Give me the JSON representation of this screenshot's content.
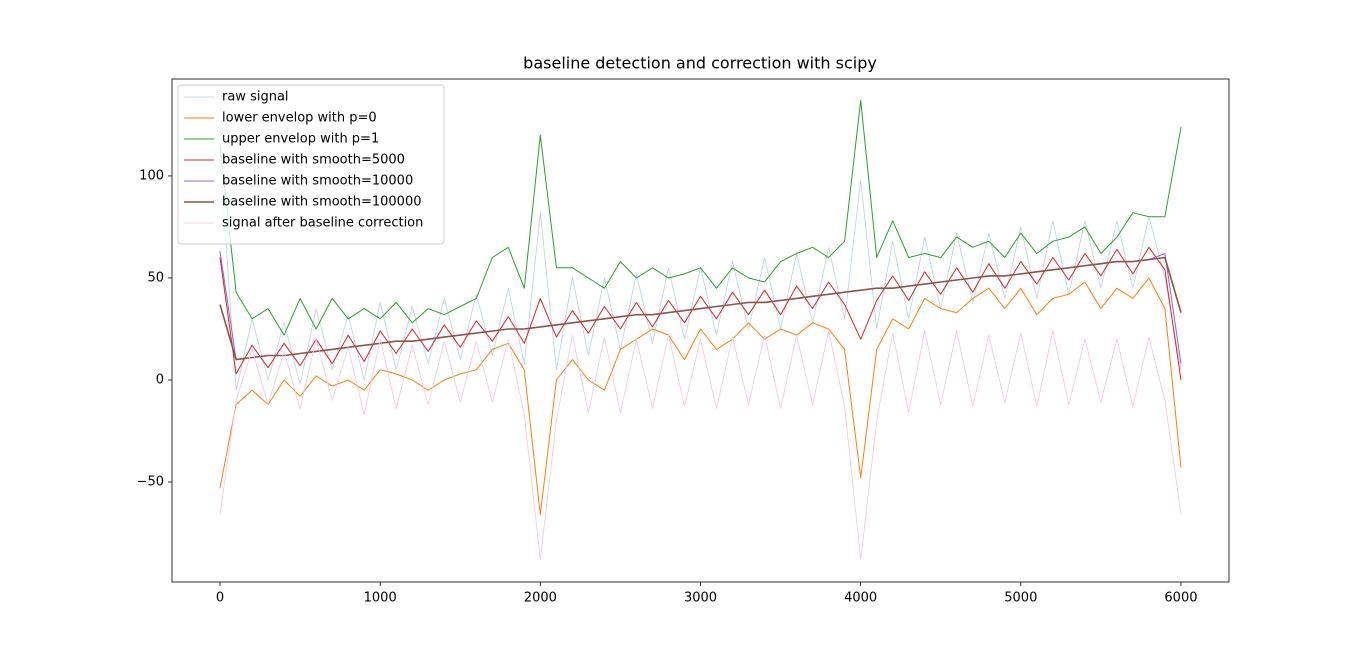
{
  "chart_data": {
    "type": "line",
    "title": "baseline detection and correction with scipy",
    "x": [
      0,
      100,
      200,
      300,
      400,
      500,
      600,
      700,
      800,
      900,
      1000,
      1100,
      1200,
      1300,
      1400,
      1500,
      1600,
      1700,
      1800,
      1900,
      2000,
      2100,
      2200,
      2300,
      2400,
      2500,
      2600,
      2700,
      2800,
      2900,
      3000,
      3100,
      3200,
      3300,
      3400,
      3500,
      3600,
      3700,
      3800,
      3900,
      4000,
      4100,
      4200,
      4300,
      4400,
      4500,
      4600,
      4700,
      4800,
      4900,
      5000,
      5100,
      5200,
      5300,
      5400,
      5500,
      5600,
      5700,
      5800,
      5900,
      6000
    ],
    "xlim": [
      -300,
      6300
    ],
    "xticks": [
      0,
      1000,
      2000,
      3000,
      4000,
      5000,
      6000
    ],
    "ylim": [
      -99,
      147.5
    ],
    "yticks": [
      {
        "value": -50,
        "label": "−50"
      },
      0,
      50,
      100
    ],
    "legend": "upper left",
    "series": [
      {
        "name": "raw signal",
        "color": "#b9d1e8",
        "linewidth": 0.8,
        "values": [
          110,
          -5,
          30,
          0,
          28,
          -2,
          35,
          5,
          32,
          0,
          38,
          5,
          36,
          8,
          40,
          10,
          42,
          12,
          45,
          8,
          82,
          5,
          50,
          12,
          50,
          15,
          52,
          18,
          55,
          20,
          55,
          22,
          58,
          25,
          60,
          25,
          62,
          28,
          65,
          30,
          98,
          25,
          68,
          30,
          70,
          35,
          72,
          38,
          72,
          40,
          75,
          40,
          78,
          42,
          78,
          45,
          78,
          45,
          80,
          50,
          5
        ]
      },
      {
        "name": "lower envelop with p=0",
        "color": "#ff7f0e",
        "linewidth": 1,
        "values": [
          -53,
          -12,
          -5,
          -12,
          0,
          -8,
          2,
          -3,
          0,
          -5,
          5,
          3,
          0,
          -5,
          0,
          3,
          5,
          15,
          18,
          5,
          -66,
          0,
          10,
          0,
          -5,
          15,
          20,
          25,
          22,
          10,
          25,
          15,
          20,
          28,
          20,
          25,
          22,
          28,
          25,
          15,
          -48,
          15,
          30,
          25,
          40,
          35,
          33,
          40,
          45,
          35,
          45,
          32,
          40,
          42,
          48,
          35,
          45,
          40,
          50,
          35,
          -43
        ]
      },
      {
        "name": "upper envelop with p=1",
        "color": "#2ca02c",
        "linewidth": 1,
        "values": [
          115,
          43,
          30,
          35,
          22,
          40,
          25,
          40,
          30,
          35,
          30,
          38,
          28,
          35,
          32,
          36,
          40,
          60,
          65,
          45,
          120,
          55,
          55,
          50,
          45,
          58,
          50,
          55,
          50,
          52,
          55,
          45,
          55,
          50,
          48,
          58,
          62,
          65,
          60,
          68,
          137,
          60,
          78,
          60,
          62,
          60,
          70,
          65,
          68,
          60,
          72,
          62,
          68,
          70,
          75,
          62,
          70,
          82,
          80,
          80,
          124
        ]
      },
      {
        "name": "baseline with smooth=5000",
        "color": "#d62728",
        "linewidth": 1,
        "values": [
          60,
          3,
          17,
          6,
          18,
          7,
          20,
          8,
          22,
          9,
          24,
          13,
          25,
          14,
          27,
          16,
          29,
          19,
          31,
          18,
          40,
          21,
          34,
          23,
          36,
          25,
          38,
          26,
          39,
          28,
          41,
          30,
          43,
          32,
          44,
          32,
          46,
          35,
          48,
          37,
          20,
          39,
          51,
          39,
          53,
          42,
          55,
          43,
          57,
          45,
          58,
          47,
          60,
          49,
          62,
          51,
          64,
          52,
          65,
          54,
          0
        ]
      },
      {
        "name": "baseline with smooth=10000",
        "color": "#9467bd",
        "linewidth": 1,
        "values": [
          63,
          10,
          11,
          12,
          12,
          13,
          14,
          15,
          16,
          17,
          18,
          19,
          19,
          20,
          21,
          22,
          23,
          24,
          25,
          25,
          26,
          27,
          28,
          29,
          30,
          31,
          32,
          32,
          33,
          34,
          35,
          36,
          37,
          38,
          38,
          39,
          40,
          41,
          42,
          43,
          44,
          45,
          45,
          46,
          47,
          48,
          49,
          50,
          51,
          51,
          52,
          53,
          54,
          55,
          56,
          57,
          58,
          58,
          59,
          62,
          8
        ]
      },
      {
        "name": "baseline with smooth=100000",
        "color": "#8c564b",
        "linewidth": 1.6,
        "values": [
          37,
          10,
          11,
          12,
          12,
          13,
          14,
          15,
          16,
          17,
          18,
          19,
          19,
          20,
          21,
          22,
          23,
          24,
          25,
          25,
          26,
          27,
          28,
          29,
          30,
          31,
          32,
          32,
          33,
          34,
          35,
          36,
          37,
          38,
          38,
          39,
          40,
          41,
          42,
          43,
          44,
          45,
          45,
          46,
          47,
          48,
          49,
          50,
          51,
          51,
          52,
          53,
          54,
          55,
          56,
          57,
          58,
          58,
          59,
          60,
          33
        ]
      },
      {
        "name": "signal after baseline correction",
        "color": "#f4c6e6",
        "linewidth": 0.8,
        "values": [
          -66,
          -10,
          15,
          -12,
          14,
          -14,
          20,
          -10,
          16,
          -17,
          20,
          -14,
          17,
          -12,
          19,
          -11,
          19,
          -11,
          20,
          -17,
          -88,
          -20,
          22,
          -16,
          21,
          -16,
          20,
          -14,
          22,
          -13,
          20,
          -14,
          21,
          -12,
          22,
          -14,
          22,
          -12,
          24,
          -13,
          -88,
          -20,
          23,
          -16,
          24,
          -12,
          24,
          -13,
          22,
          -11,
          23,
          -13,
          24,
          -12,
          20,
          -11,
          20,
          -13,
          21,
          -10,
          -66
        ]
      }
    ]
  }
}
